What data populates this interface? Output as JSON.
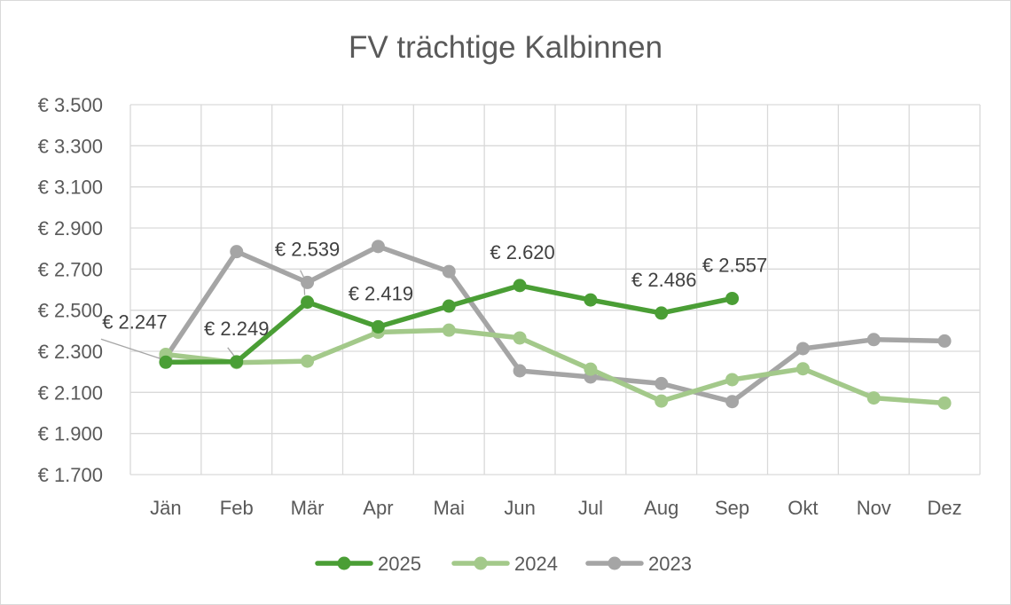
{
  "chart_data": {
    "type": "line",
    "title": "FV trächtige Kalbinnen",
    "xlabel": "",
    "ylabel": "",
    "categories": [
      "Jän",
      "Feb",
      "Mär",
      "Apr",
      "Mai",
      "Jun",
      "Jul",
      "Aug",
      "Sep",
      "Okt",
      "Nov",
      "Dez"
    ],
    "ylim": [
      1700,
      3500
    ],
    "yticks": [
      1700,
      1900,
      2100,
      2300,
      2500,
      2700,
      2900,
      3100,
      3300,
      3500
    ],
    "ytick_labels": [
      "€ 1.700",
      "€ 1.900",
      "€ 2.100",
      "€ 2.300",
      "€ 2.500",
      "€ 2.700",
      "€ 2.900",
      "€ 3.100",
      "€ 3.300",
      "€ 3.500"
    ],
    "grid": true,
    "legend_position": "bottom",
    "series": [
      {
        "name": "2025",
        "color": "#4a9e35",
        "values": [
          2247,
          2249,
          2539,
          2419,
          2520,
          2620,
          2550,
          2486,
          2557,
          null,
          null,
          null
        ]
      },
      {
        "name": "2024",
        "color": "#a3c98a",
        "values": [
          2285,
          2245,
          2252,
          2393,
          2403,
          2365,
          2213,
          2058,
          2162,
          2215,
          2073,
          2048
        ]
      },
      {
        "name": "2023",
        "color": "#a5a5a5",
        "values": [
          2270,
          2785,
          2635,
          2810,
          2688,
          2205,
          2175,
          2143,
          2055,
          2313,
          2357,
          2350
        ]
      }
    ],
    "annotations": [
      {
        "series": "2025",
        "index": 0,
        "text": "€ 2.247",
        "leader": true
      },
      {
        "series": "2025",
        "index": 1,
        "text": "€ 2.249",
        "leader": true
      },
      {
        "series": "2025",
        "index": 2,
        "text": "€ 2.539",
        "leader": true
      },
      {
        "series": "2025",
        "index": 3,
        "text": "€ 2.419",
        "leader": false
      },
      {
        "series": "2025",
        "index": 5,
        "text": "€ 2.620",
        "leader": false
      },
      {
        "series": "2025",
        "index": 7,
        "text": "€ 2.486",
        "leader": false
      },
      {
        "series": "2025",
        "index": 8,
        "text": "€ 2.557",
        "leader": false
      }
    ]
  }
}
